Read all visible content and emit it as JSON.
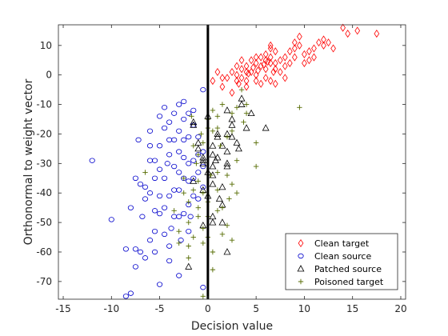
{
  "chart_data": {
    "type": "scatter",
    "xlabel": "Decision value",
    "ylabel": "Orthonormal to weight vector",
    "xlim": [
      -15.5,
      20.5
    ],
    "ylim": [
      -76,
      17
    ],
    "xticks": [
      -15,
      -10,
      -5,
      0,
      5,
      10,
      15,
      20
    ],
    "yticks": [
      -70,
      -60,
      -50,
      -40,
      -30,
      -20,
      -10,
      0,
      10
    ],
    "grid": false,
    "legend_position": "bottom-right",
    "decision_boundary_x": 0,
    "series": [
      {
        "name": "Clean target",
        "marker": "diamond",
        "color": "#ff0000",
        "points": [
          [
            0.5,
            -2
          ],
          [
            1,
            1
          ],
          [
            1.5,
            -1
          ],
          [
            1.5,
            -4
          ],
          [
            2,
            -1
          ],
          [
            2.5,
            1
          ],
          [
            2.5,
            -6
          ],
          [
            3,
            0
          ],
          [
            3,
            3
          ],
          [
            3,
            -2
          ],
          [
            3.5,
            -1
          ],
          [
            3.5,
            2
          ],
          [
            3.5,
            5
          ],
          [
            4,
            1
          ],
          [
            4,
            3
          ],
          [
            4,
            -2
          ],
          [
            4,
            -4
          ],
          [
            4.5,
            5
          ],
          [
            4.5,
            1
          ],
          [
            5,
            6
          ],
          [
            5,
            4
          ],
          [
            5,
            0
          ],
          [
            5,
            -2
          ],
          [
            5.5,
            3
          ],
          [
            5.5,
            6
          ],
          [
            5.5,
            -3
          ],
          [
            6,
            5
          ],
          [
            6,
            2
          ],
          [
            6,
            7
          ],
          [
            6,
            -1
          ],
          [
            6.5,
            6
          ],
          [
            6.5,
            4
          ],
          [
            6.5,
            9
          ],
          [
            6.5,
            10
          ],
          [
            6.5,
            -2
          ],
          [
            7,
            4
          ],
          [
            7,
            8
          ],
          [
            7,
            -3
          ],
          [
            7,
            2
          ],
          [
            7.5,
            5
          ],
          [
            7.5,
            1
          ],
          [
            8,
            6
          ],
          [
            8,
            3
          ],
          [
            8,
            -1
          ],
          [
            8.5,
            8
          ],
          [
            8.5,
            4
          ],
          [
            9,
            6
          ],
          [
            9,
            11
          ],
          [
            9,
            9
          ],
          [
            9.5,
            13
          ],
          [
            9.5,
            10
          ],
          [
            10,
            7
          ],
          [
            10,
            4
          ],
          [
            10.5,
            8
          ],
          [
            10.5,
            5
          ],
          [
            11,
            9
          ],
          [
            11,
            6
          ],
          [
            11.5,
            11
          ],
          [
            12,
            10
          ],
          [
            12,
            12
          ],
          [
            12.5,
            11
          ],
          [
            13,
            9
          ],
          [
            14,
            16
          ],
          [
            14.5,
            14
          ],
          [
            15.5,
            15
          ],
          [
            17.5,
            14
          ],
          [
            5.8,
            3.5
          ],
          [
            4.7,
            2.5
          ],
          [
            3.2,
            -3
          ],
          [
            6.8,
            1
          ],
          [
            5.2,
            1.5
          ],
          [
            4.2,
            0.5
          ],
          [
            6.2,
            4.5
          ]
        ]
      },
      {
        "name": "Clean source",
        "marker": "circle",
        "color": "#0000cc",
        "points": [
          [
            -12,
            -29
          ],
          [
            -10,
            -49
          ],
          [
            -8.5,
            -59
          ],
          [
            -8.5,
            -75
          ],
          [
            -8,
            -74
          ],
          [
            -8,
            -45
          ],
          [
            -7.5,
            -59
          ],
          [
            -7.5,
            -65
          ],
          [
            -7.5,
            -35
          ],
          [
            -7,
            -60
          ],
          [
            -7,
            -37
          ],
          [
            -6.5,
            -62
          ],
          [
            -6.5,
            -42
          ],
          [
            -6.5,
            -38
          ],
          [
            -6,
            -56
          ],
          [
            -6,
            -40
          ],
          [
            -6,
            -29
          ],
          [
            -6,
            -24
          ],
          [
            -6,
            -19
          ],
          [
            -5.5,
            -53
          ],
          [
            -5.5,
            -46
          ],
          [
            -5.5,
            -35
          ],
          [
            -5.5,
            -29
          ],
          [
            -5.5,
            -60
          ],
          [
            -5,
            -47
          ],
          [
            -5,
            -41
          ],
          [
            -5,
            -32
          ],
          [
            -5,
            -24
          ],
          [
            -5,
            -14
          ],
          [
            -5,
            -71
          ],
          [
            -4.5,
            -54
          ],
          [
            -4.5,
            -45
          ],
          [
            -4.5,
            -35
          ],
          [
            -4.5,
            -18
          ],
          [
            -4.5,
            -11
          ],
          [
            -4,
            -41
          ],
          [
            -4,
            -27
          ],
          [
            -4,
            -22
          ],
          [
            -4,
            -16
          ],
          [
            -4,
            -63
          ],
          [
            -4,
            -58
          ],
          [
            -3.5,
            -48
          ],
          [
            -3.5,
            -39
          ],
          [
            -3.5,
            -31
          ],
          [
            -3.5,
            -22
          ],
          [
            -3.5,
            -13
          ],
          [
            -3,
            -48
          ],
          [
            -3,
            -39
          ],
          [
            -3,
            -33
          ],
          [
            -3,
            -26
          ],
          [
            -3,
            -19
          ],
          [
            -3,
            -10
          ],
          [
            -3,
            -68
          ],
          [
            -2.5,
            -47
          ],
          [
            -2.5,
            -35
          ],
          [
            -2.5,
            -28
          ],
          [
            -2.5,
            -22
          ],
          [
            -2.5,
            -15
          ],
          [
            -2.5,
            -9
          ],
          [
            -2,
            -53
          ],
          [
            -2,
            -44
          ],
          [
            -2,
            -36
          ],
          [
            -2,
            -30
          ],
          [
            -2,
            -21
          ],
          [
            -2,
            -13
          ],
          [
            -1.5,
            -41
          ],
          [
            -1.5,
            -35
          ],
          [
            -1.5,
            -29
          ],
          [
            -1.5,
            -17
          ],
          [
            -1.5,
            -12
          ],
          [
            -1,
            -42
          ],
          [
            -1,
            -33
          ],
          [
            -1,
            -27
          ],
          [
            -1,
            -21
          ],
          [
            -0.5,
            -38
          ],
          [
            -0.5,
            -31
          ],
          [
            -0.5,
            -26
          ],
          [
            -0.5,
            -5
          ],
          [
            -0.5,
            -72
          ],
          [
            -7.2,
            -22
          ],
          [
            -6.8,
            -48
          ],
          [
            -4.2,
            -30
          ],
          [
            -3.8,
            -52
          ],
          [
            -2.8,
            -56
          ],
          [
            -1.8,
            -48
          ]
        ]
      },
      {
        "name": "Patched source",
        "marker": "triangle",
        "color": "#000000",
        "points": [
          [
            -2,
            -65
          ],
          [
            -1.5,
            -36
          ],
          [
            -1,
            -23
          ],
          [
            -1,
            -25
          ],
          [
            -0.5,
            -39
          ],
          [
            -0.5,
            -51
          ],
          [
            -0.5,
            -29
          ],
          [
            -0.5,
            -30
          ],
          [
            -0.5,
            -28
          ],
          [
            0,
            -14
          ],
          [
            0,
            -41
          ],
          [
            0.5,
            -24
          ],
          [
            0.5,
            -34
          ],
          [
            0.5,
            -37
          ],
          [
            0.5,
            -48
          ],
          [
            0.5,
            -50
          ],
          [
            0.5,
            -31
          ],
          [
            0.5,
            -27
          ],
          [
            1,
            -20
          ],
          [
            1,
            -21
          ],
          [
            1,
            -28
          ],
          [
            1.5,
            -38
          ],
          [
            1.5,
            -44
          ],
          [
            1.5,
            -50
          ],
          [
            1.5,
            -24
          ],
          [
            2,
            -12
          ],
          [
            2,
            -20
          ],
          [
            2,
            -26
          ],
          [
            2,
            -30
          ],
          [
            2,
            -31
          ],
          [
            2,
            -60
          ],
          [
            2.5,
            -15
          ],
          [
            2.5,
            -17
          ],
          [
            2.5,
            -21
          ],
          [
            3,
            -23
          ],
          [
            3.5,
            -8
          ],
          [
            3.5,
            -10
          ],
          [
            4,
            -18
          ],
          [
            4.5,
            -13
          ],
          [
            6,
            -18
          ],
          [
            -1.5,
            -17
          ],
          [
            -1.5,
            -16
          ],
          [
            0,
            -33
          ],
          [
            1.2,
            -42
          ],
          [
            0.8,
            -29
          ],
          [
            3.2,
            -25
          ]
        ]
      },
      {
        "name": "Poisoned target",
        "marker": "plus",
        "color": "#556b00",
        "points": [
          [
            -6.5,
            -33
          ],
          [
            -3.5,
            -46
          ],
          [
            -3,
            -53
          ],
          [
            -3,
            -57
          ],
          [
            -2.5,
            -35
          ],
          [
            -2.5,
            -40
          ],
          [
            -2,
            -43
          ],
          [
            -2,
            -50
          ],
          [
            -2,
            -58
          ],
          [
            -2,
            -62
          ],
          [
            -1.5,
            -24
          ],
          [
            -1.5,
            -55
          ],
          [
            -1.5,
            -39
          ],
          [
            -1,
            -27
          ],
          [
            -1,
            -36
          ],
          [
            -1,
            -45
          ],
          [
            -1,
            -48
          ],
          [
            -0.5,
            -52
          ],
          [
            -0.5,
            -57
          ],
          [
            -0.5,
            -40
          ],
          [
            -0.5,
            -75
          ],
          [
            -0.5,
            -23
          ],
          [
            0,
            -15
          ],
          [
            0,
            -18
          ],
          [
            0,
            -43
          ],
          [
            0,
            -48
          ],
          [
            0,
            -55
          ],
          [
            0.5,
            -12
          ],
          [
            0.5,
            -19
          ],
          [
            0.5,
            -60
          ],
          [
            0.5,
            -66
          ],
          [
            1,
            -14
          ],
          [
            1,
            -18
          ],
          [
            1,
            -33
          ],
          [
            1,
            -39
          ],
          [
            1,
            -46
          ],
          [
            1.5,
            -10
          ],
          [
            1.5,
            -45
          ],
          [
            1.5,
            -54
          ],
          [
            2,
            -21
          ],
          [
            2,
            -34
          ],
          [
            2,
            -51
          ],
          [
            2.5,
            -13
          ],
          [
            2.5,
            -19
          ],
          [
            2.5,
            -37
          ],
          [
            2.5,
            -56
          ],
          [
            3,
            -11
          ],
          [
            3,
            -29
          ],
          [
            3,
            -40
          ],
          [
            3.5,
            -5
          ],
          [
            4,
            -10
          ],
          [
            4,
            -13
          ],
          [
            5,
            -31
          ],
          [
            5,
            -23
          ],
          [
            9.5,
            -11
          ],
          [
            -1.7,
            -14
          ],
          [
            -0.7,
            -20
          ],
          [
            1.3,
            -24
          ],
          [
            2.2,
            -42
          ],
          [
            3.7,
            -16
          ],
          [
            -1.2,
            -30
          ],
          [
            0.3,
            -34
          ]
        ]
      }
    ]
  }
}
